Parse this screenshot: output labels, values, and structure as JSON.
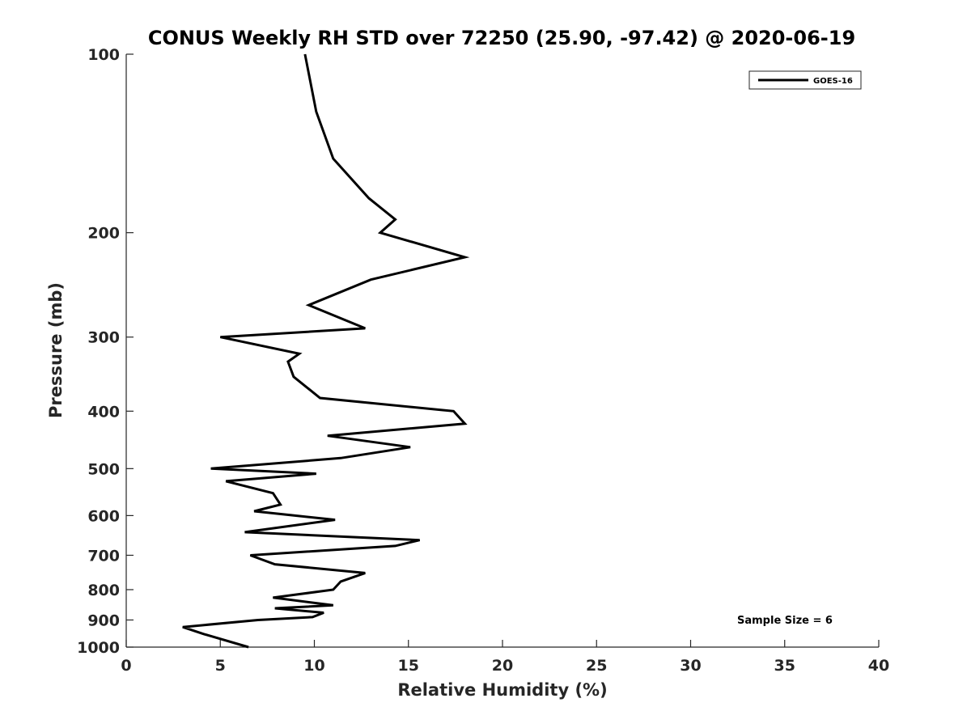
{
  "chart_data": {
    "type": "line",
    "title": "CONUS Weekly RH STD over 72250 (25.90, -97.42) @ 2020-06-19",
    "xlabel": "Relative Humidity (%)",
    "ylabel": "Pressure (mb)",
    "xlim": [
      0,
      40
    ],
    "ylim": [
      100,
      1000
    ],
    "y_scale": "log",
    "y_reversed": true,
    "xticks": [
      0,
      5,
      10,
      15,
      20,
      25,
      30,
      35,
      40
    ],
    "yticks": [
      100,
      200,
      300,
      400,
      500,
      600,
      700,
      800,
      900,
      1000
    ],
    "grid": false,
    "legend_position": "top-right",
    "annotation": "Sample Size = 6",
    "series": [
      {
        "name": "GOES-16",
        "color": "#000000",
        "x": [
          9.5,
          10.1,
          11.0,
          12.9,
          14.3,
          13.5,
          18.0,
          13.0,
          9.7,
          12.7,
          5.0,
          9.2,
          8.6,
          8.9,
          10.3,
          17.4,
          18.0,
          10.7,
          15.1,
          11.4,
          4.5,
          10.1,
          5.3,
          7.8,
          8.2,
          6.8,
          11.1,
          6.3,
          15.6,
          14.3,
          6.6,
          7.9,
          12.7,
          11.4,
          11.0,
          7.8,
          11.0,
          7.9,
          10.5,
          9.9,
          7.0,
          3.0,
          4.1,
          6.5
        ],
        "y": [
          100,
          125,
          150,
          175,
          190,
          200,
          220,
          240,
          265,
          290,
          300,
          320,
          330,
          350,
          380,
          400,
          420,
          440,
          460,
          480,
          500,
          510,
          525,
          550,
          575,
          590,
          610,
          640,
          660,
          675,
          700,
          725,
          750,
          775,
          800,
          825,
          850,
          860,
          875,
          890,
          900,
          925,
          950,
          1000
        ]
      }
    ]
  }
}
